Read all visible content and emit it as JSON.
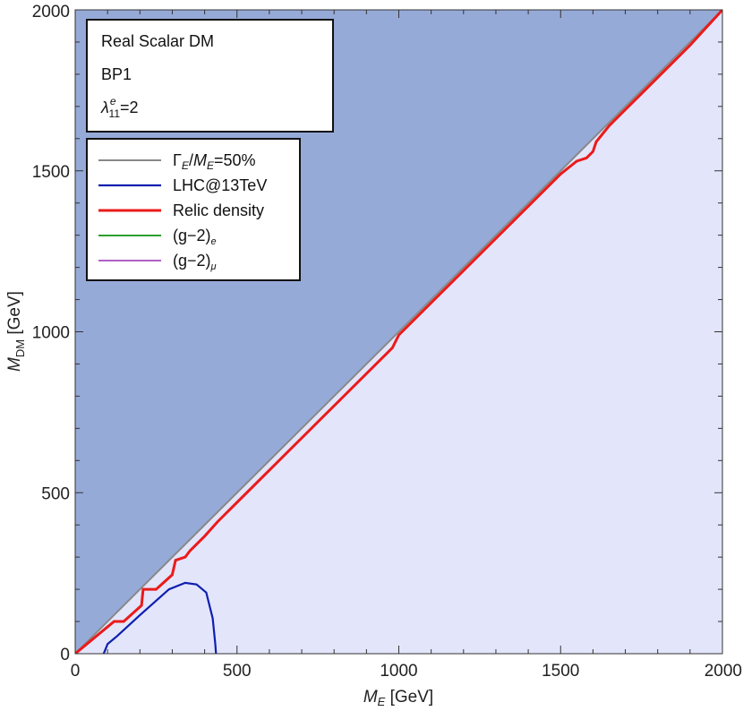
{
  "chart_data": {
    "type": "line",
    "xlabel": {
      "main": "M",
      "sub": "E",
      "unit": " [GeV]"
    },
    "ylabel": {
      "main": "M",
      "sub": "DM",
      "unit": " [GeV]"
    },
    "xlim": [
      0,
      2000
    ],
    "ylim": [
      0,
      2000
    ],
    "x_ticks": [
      0,
      500,
      1000,
      1500,
      2000
    ],
    "y_ticks": [
      0,
      500,
      1000,
      1500,
      2000
    ],
    "grid": false,
    "colors": {
      "excluded_region": "#96aad8",
      "allowed_region": "#e3e5fb",
      "width_line": "#888888",
      "lhc": "#0d1fb0",
      "relic": "#ea1b1b",
      "g2e": "#2ca02c",
      "g2mu": "#b05fc7"
    },
    "info_box": {
      "line1": "Real Scalar DM",
      "line2": "BP1",
      "lambda_sup": "e",
      "lambda_sub": "11",
      "lambda_value": "=2"
    },
    "legend": {
      "placement": "top-left",
      "entries": [
        {
          "key": "width",
          "text_parts": [
            "Γ",
            "E",
            "/",
            "M",
            "E",
            "=50%"
          ]
        },
        {
          "key": "lhc",
          "text": "LHC@13TeV"
        },
        {
          "key": "relic",
          "text": "Relic density"
        },
        {
          "key": "g2e",
          "text": "(g−2)",
          "sub": "e"
        },
        {
          "key": "g2mu",
          "text": "(g−2)",
          "sub": "μ"
        }
      ]
    },
    "series": [
      {
        "key": "width",
        "x": [
          0,
          2000
        ],
        "y": [
          0,
          2000
        ]
      },
      {
        "key": "lhc",
        "x": [
          88,
          100,
          130,
          200,
          290,
          340,
          375,
          405,
          425,
          433,
          435
        ],
        "y": [
          0,
          30,
          55,
          120,
          200,
          220,
          215,
          190,
          110,
          30,
          0
        ]
      },
      {
        "key": "relic",
        "x": [
          0,
          120,
          150,
          205,
          210,
          250,
          300,
          310,
          340,
          355,
          400,
          440,
          500,
          560,
          620,
          680,
          720,
          760,
          800,
          850,
          900,
          950,
          980,
          1000,
          1050,
          1100,
          1150,
          1200,
          1250,
          1300,
          1350,
          1400,
          1450,
          1500,
          1550,
          1580,
          1600,
          1610,
          1650,
          1700,
          1750,
          1800,
          1900,
          2000
        ],
        "y": [
          0,
          100,
          100,
          150,
          200,
          200,
          245,
          290,
          300,
          320,
          365,
          410,
          470,
          530,
          590,
          650,
          690,
          730,
          770,
          820,
          870,
          920,
          950,
          990,
          1040,
          1090,
          1140,
          1190,
          1240,
          1290,
          1340,
          1390,
          1440,
          1490,
          1530,
          1540,
          1560,
          1590,
          1640,
          1690,
          1740,
          1790,
          1890,
          2000
        ]
      }
    ]
  }
}
